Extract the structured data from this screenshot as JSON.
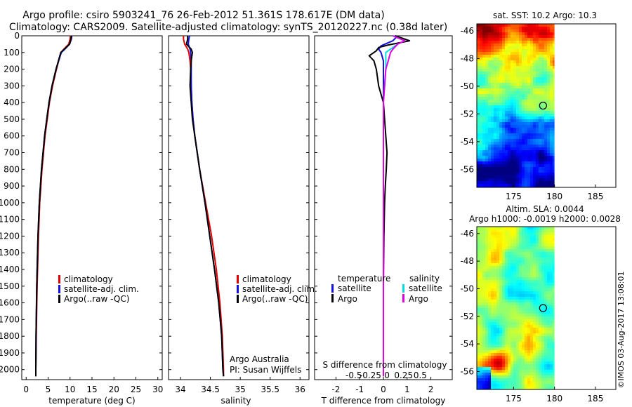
{
  "header": {
    "line1": "Argo profile: csiro 5903241_76 26-Feb-2012 51.361S 178.617E (DM data)",
    "line2": "Climatology: CARS2009. Satellite-adjusted climatology: synTS_20120227.nc (0.38d later)"
  },
  "footer": {
    "timestamp": "©IMOS 03-Aug-2017 13:08:01"
  },
  "colors": {
    "climatology": "#e00000",
    "satellite": "#1010e0",
    "argo": "#000000",
    "sat_salinity": "#00e0e0",
    "argo_salinity": "#e000e0"
  },
  "chart_data": [
    {
      "id": "temperature",
      "type": "line",
      "xlabel": "temperature (deg C)",
      "ylabel": "",
      "xlim": [
        -1,
        31
      ],
      "ylim": [
        2060,
        0
      ],
      "xticks": [
        0,
        5,
        10,
        15,
        20,
        25,
        30
      ],
      "yticks": [
        0,
        100,
        200,
        300,
        400,
        500,
        600,
        700,
        800,
        900,
        1000,
        1100,
        1200,
        1300,
        1400,
        1500,
        1600,
        1700,
        1800,
        1900,
        2000
      ],
      "legend": {
        "position": "center-left",
        "entries": [
          "climatology",
          "satellite-adj. clim.",
          "Argo(..raw -QC)"
        ]
      },
      "series": [
        {
          "name": "climatology",
          "color": "#e00000",
          "depth": [
            0,
            20,
            50,
            80,
            100,
            200,
            300,
            400,
            500,
            600,
            800,
            1000,
            1200,
            1500,
            1800,
            2000,
            2040
          ],
          "values": [
            10.1,
            10.0,
            9.7,
            8.6,
            7.9,
            6.9,
            6.0,
            5.3,
            4.8,
            4.3,
            3.6,
            3.1,
            2.8,
            2.5,
            2.3,
            2.2,
            2.2
          ]
        },
        {
          "name": "satellite-adj. clim.",
          "color": "#1010e0",
          "depth": [
            0,
            20,
            50,
            80,
            100,
            200,
            300,
            400,
            500,
            600,
            800,
            1000,
            1200,
            1500,
            1800,
            2000,
            2040
          ],
          "values": [
            10.4,
            10.3,
            9.9,
            8.8,
            8.0,
            6.8,
            5.9,
            5.2,
            4.7,
            4.2,
            3.5,
            3.0,
            2.7,
            2.4,
            2.25,
            2.2,
            2.2
          ]
        },
        {
          "name": "Argo(..raw -QC)",
          "color": "#000000",
          "depth": [
            0,
            20,
            50,
            80,
            100,
            200,
            300,
            400,
            500,
            600,
            800,
            1000,
            1200,
            1500,
            1800,
            2000,
            2040
          ],
          "values": [
            10.3,
            10.2,
            9.9,
            8.7,
            7.9,
            6.8,
            5.9,
            5.2,
            4.7,
            4.2,
            3.5,
            3.0,
            2.7,
            2.4,
            2.25,
            2.2,
            2.2
          ]
        }
      ]
    },
    {
      "id": "salinity",
      "type": "line",
      "xlabel": "salinity",
      "ylabel": "",
      "xlim": [
        33.8,
        36.15
      ],
      "ylim": [
        2060,
        0
      ],
      "xticks": [
        34,
        34.5,
        35,
        35.5,
        36
      ],
      "legend": {
        "position": "center-right",
        "entries": [
          "climatology",
          "satellite-adj. clim.",
          "Argo(..raw -QC)"
        ]
      },
      "annotation": [
        "Argo Australia",
        "PI: Susan Wijffels"
      ],
      "series": [
        {
          "name": "climatology",
          "color": "#e00000",
          "depth": [
            0,
            20,
            50,
            80,
            100,
            150,
            200,
            300,
            400,
            500,
            600,
            800,
            1000,
            1200,
            1400,
            1600,
            1800,
            2000,
            2040
          ],
          "values": [
            34.05,
            34.05,
            34.07,
            34.12,
            34.14,
            34.16,
            34.17,
            34.18,
            34.19,
            34.21,
            34.24,
            34.32,
            34.42,
            34.52,
            34.6,
            34.66,
            34.7,
            34.72,
            34.72
          ]
        },
        {
          "name": "satellite-adj. clim.",
          "color": "#1010e0",
          "depth": [
            0,
            20,
            50,
            80,
            100,
            150,
            200,
            300,
            400,
            500,
            600,
            800,
            1000,
            1200,
            1400,
            1600,
            1800,
            2000,
            2040
          ],
          "values": [
            34.15,
            34.14,
            34.13,
            34.16,
            34.17,
            34.18,
            34.18,
            34.18,
            34.19,
            34.21,
            34.24,
            34.32,
            34.41,
            34.49,
            34.57,
            34.64,
            34.69,
            34.71,
            34.72
          ]
        },
        {
          "name": "Argo(..raw -QC)",
          "color": "#000000",
          "depth": [
            0,
            20,
            50,
            80,
            100,
            150,
            200,
            300,
            400,
            500,
            600,
            800,
            1000,
            1200,
            1400,
            1600,
            1800,
            2000,
            2040
          ],
          "values": [
            34.12,
            34.12,
            34.1,
            34.18,
            34.2,
            34.18,
            34.17,
            34.16,
            34.18,
            34.2,
            34.24,
            34.32,
            34.41,
            34.49,
            34.57,
            34.64,
            34.69,
            34.71,
            34.72
          ]
        }
      ]
    },
    {
      "id": "differences",
      "type": "line",
      "xlabel": "T difference from climatology",
      "x2label": "S difference from climatology",
      "ylabel": "",
      "xlim": [
        -2.9,
        2.9
      ],
      "ylim": [
        2060,
        0
      ],
      "xticks": [
        -2,
        -1,
        0,
        1,
        2
      ],
      "x2ticks": [
        -0.5,
        -0.25,
        0,
        0.25,
        0.5
      ],
      "legend": {
        "position": "center",
        "groups": [
          {
            "header": "temperature",
            "entries": [
              "satellite",
              "Argo"
            ]
          },
          {
            "header": "salinity",
            "entries": [
              "satellite",
              "Argo"
            ]
          }
        ]
      },
      "series": [
        {
          "name": "temperature satellite",
          "color": "#1010e0",
          "depth": [
            0,
            30,
            60,
            80,
            100,
            150,
            200,
            300,
            400,
            500,
            700,
            1000,
            1500,
            2000,
            2040
          ],
          "values": [
            0.6,
            0.4,
            -0.1,
            -0.2,
            -0.1,
            0.0,
            0.0,
            0.0,
            0.0,
            0.0,
            0.0,
            0.0,
            0.0,
            0.0,
            0.0
          ]
        },
        {
          "name": "temperature Argo",
          "color": "#000000",
          "depth": [
            0,
            30,
            55,
            70,
            90,
            120,
            150,
            200,
            300,
            400,
            500,
            600,
            700,
            800,
            900,
            1000,
            1200,
            1500,
            1800,
            2000,
            2040
          ],
          "values": [
            0.5,
            1.1,
            0.2,
            -0.2,
            -0.3,
            -0.6,
            -0.4,
            -0.3,
            -0.2,
            0.0,
            0.05,
            0.1,
            0.15,
            0.12,
            0.08,
            0.05,
            0.02,
            0.0,
            0.0,
            0.0,
            0.0
          ]
        },
        {
          "name": "salinity satellite",
          "color": "#00e0e0",
          "depth": [
            0,
            30,
            50,
            80,
            100,
            150,
            200,
            300,
            400,
            500,
            600,
            800,
            1000,
            1500,
            2000,
            2040
          ],
          "values": [
            0.4,
            0.9,
            0.6,
            0.3,
            0.1,
            0.1,
            0.1,
            0.05,
            0.0,
            0.0,
            0.0,
            0.0,
            0.0,
            0.0,
            0.0,
            0.0
          ]
        },
        {
          "name": "salinity Argo",
          "color": "#e000e0",
          "depth": [
            0,
            30,
            50,
            80,
            100,
            150,
            200,
            300,
            400,
            500,
            600,
            800,
            1000,
            1500,
            2000,
            2040
          ],
          "values": [
            0.4,
            0.9,
            0.6,
            0.4,
            0.3,
            0.2,
            0.1,
            0.05,
            0.0,
            0.0,
            0.0,
            0.0,
            0.0,
            0.0,
            0.0,
            0.0
          ]
        }
      ]
    },
    {
      "id": "sst_map",
      "type": "heatmap",
      "title": "sat. SST: 10.2  Argo: 10.3",
      "xlim": [
        170.5,
        187.5
      ],
      "ylim": [
        -57.3,
        -45.5
      ],
      "xticks": [
        175,
        180,
        185
      ],
      "yticks": [
        -46,
        -48,
        -50,
        -52,
        -54,
        -56
      ],
      "marker": {
        "lon": 178.6,
        "lat": -51.4
      },
      "colormap": "jet",
      "data_extent_lon": [
        170.5,
        180
      ]
    },
    {
      "id": "sla_map",
      "type": "heatmap",
      "title": "Altim. SLA: 0.0044",
      "subtitle": "Argo h1000: -0.0019  h2000: 0.0028",
      "xlim": [
        170.5,
        187.5
      ],
      "ylim": [
        -57.3,
        -45.5
      ],
      "xticks": [
        175,
        180,
        185
      ],
      "yticks": [
        -46,
        -48,
        -50,
        -52,
        -54,
        -56
      ],
      "marker": {
        "lon": 178.6,
        "lat": -51.4
      },
      "colormap": "jet",
      "data_extent_lon": [
        170.5,
        180
      ]
    }
  ]
}
